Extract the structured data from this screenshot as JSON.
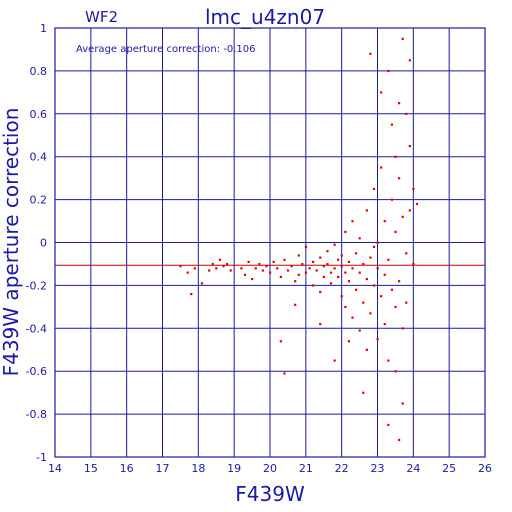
{
  "chart_data": {
    "type": "scatter",
    "title": "lmc_u4zn07",
    "chip_label": "WF2",
    "annotation": "Average aperture correction: -0.106",
    "xlabel": "F439W",
    "ylabel": "F439W aperture correction",
    "xlim": [
      14,
      26
    ],
    "ylim": [
      -1,
      1
    ],
    "x_ticks": [
      14,
      15,
      16,
      17,
      18,
      19,
      20,
      21,
      22,
      23,
      24,
      25,
      26
    ],
    "y_ticks": [
      -1,
      -0.8,
      -0.6,
      -0.4,
      -0.2,
      0,
      0.2,
      0.4,
      0.6,
      0.8,
      1
    ],
    "y_tick_labels": [
      "-1",
      "-0.8",
      "-0.6",
      "-0.4",
      "-0.2",
      "0",
      "0.2",
      "0.4",
      "0.6",
      "0.8",
      "1"
    ],
    "grid": true,
    "reference_line": {
      "y": -0.106
    },
    "colors": {
      "axes": "#1a1aa6",
      "points": "#e00000",
      "reference_line": "#cc0000"
    },
    "points": [
      [
        17.5,
        -0.11
      ],
      [
        17.7,
        -0.14
      ],
      [
        17.8,
        -0.24
      ],
      [
        17.9,
        -0.12
      ],
      [
        18.1,
        -0.19
      ],
      [
        18.3,
        -0.13
      ],
      [
        18.4,
        -0.1
      ],
      [
        18.5,
        -0.12
      ],
      [
        18.6,
        -0.08
      ],
      [
        18.7,
        -0.11
      ],
      [
        18.8,
        -0.1
      ],
      [
        18.9,
        -0.13
      ],
      [
        19.2,
        -0.12
      ],
      [
        19.3,
        -0.15
      ],
      [
        19.4,
        -0.09
      ],
      [
        19.5,
        -0.17
      ],
      [
        19.6,
        -0.12
      ],
      [
        19.7,
        -0.1
      ],
      [
        19.8,
        -0.13
      ],
      [
        19.9,
        -0.11
      ],
      [
        20.0,
        -0.14
      ],
      [
        20.1,
        -0.09
      ],
      [
        20.2,
        -0.12
      ],
      [
        20.3,
        -0.16
      ],
      [
        20.3,
        -0.46
      ],
      [
        20.4,
        -0.61
      ],
      [
        20.4,
        -0.08
      ],
      [
        20.5,
        -0.13
      ],
      [
        20.6,
        -0.11
      ],
      [
        20.7,
        -0.18
      ],
      [
        20.8,
        -0.06
      ],
      [
        20.8,
        -0.15
      ],
      [
        20.9,
        -0.1
      ],
      [
        21.0,
        -0.14
      ],
      [
        21.0,
        -0.02
      ],
      [
        21.1,
        -0.12
      ],
      [
        21.2,
        -0.09
      ],
      [
        21.2,
        -0.2
      ],
      [
        21.3,
        -0.13
      ],
      [
        21.4,
        -0.07
      ],
      [
        21.4,
        -0.23
      ],
      [
        21.5,
        -0.11
      ],
      [
        21.5,
        -0.16
      ],
      [
        21.6,
        -0.04
      ],
      [
        21.6,
        -0.1
      ],
      [
        21.7,
        -0.14
      ],
      [
        21.7,
        -0.19
      ],
      [
        21.8,
        -0.12
      ],
      [
        21.8,
        -0.01
      ],
      [
        21.9,
        -0.08
      ],
      [
        21.9,
        -0.16
      ],
      [
        22.0,
        -0.25
      ],
      [
        22.0,
        -0.11
      ],
      [
        22.0,
        -0.06
      ],
      [
        22.1,
        -0.14
      ],
      [
        22.1,
        -0.3
      ],
      [
        22.1,
        0.05
      ],
      [
        22.2,
        -0.09
      ],
      [
        22.2,
        -0.18
      ],
      [
        22.3,
        -0.35
      ],
      [
        22.3,
        -0.12
      ],
      [
        22.3,
        0.1
      ],
      [
        22.4,
        -0.05
      ],
      [
        22.4,
        -0.22
      ],
      [
        22.5,
        -0.41
      ],
      [
        22.5,
        -0.14
      ],
      [
        22.5,
        0.02
      ],
      [
        22.6,
        -0.1
      ],
      [
        22.6,
        -0.28
      ],
      [
        22.7,
        -0.5
      ],
      [
        22.7,
        0.15
      ],
      [
        22.7,
        -0.17
      ],
      [
        22.8,
        0.88
      ],
      [
        22.8,
        -0.07
      ],
      [
        22.8,
        -0.33
      ],
      [
        22.9,
        -0.2
      ],
      [
        22.9,
        -0.02
      ],
      [
        22.9,
        0.25
      ],
      [
        23.0,
        -0.45
      ],
      [
        23.0,
        -0.12
      ],
      [
        23.0,
        0.0
      ],
      [
        23.1,
        -0.25
      ],
      [
        23.1,
        0.7
      ],
      [
        23.1,
        0.35
      ],
      [
        23.2,
        -0.15
      ],
      [
        23.2,
        -0.38
      ],
      [
        23.2,
        0.1
      ],
      [
        23.3,
        0.8
      ],
      [
        23.3,
        -0.08
      ],
      [
        23.3,
        -0.55
      ],
      [
        23.4,
        0.55
      ],
      [
        23.4,
        -0.22
      ],
      [
        23.4,
        0.2
      ],
      [
        23.5,
        -0.3
      ],
      [
        23.5,
        0.4
      ],
      [
        23.5,
        -0.6
      ],
      [
        23.5,
        0.05
      ],
      [
        23.6,
        0.65
      ],
      [
        23.6,
        -0.18
      ],
      [
        23.6,
        0.3
      ],
      [
        23.7,
        -0.4
      ],
      [
        23.7,
        0.95
      ],
      [
        23.7,
        -0.75
      ],
      [
        23.7,
        0.12
      ],
      [
        23.8,
        0.6
      ],
      [
        23.8,
        -0.05
      ],
      [
        23.8,
        -0.28
      ],
      [
        23.9,
        0.85
      ],
      [
        23.9,
        0.45
      ],
      [
        23.9,
        0.15
      ],
      [
        24.0,
        0.25
      ],
      [
        24.0,
        -0.1
      ],
      [
        24.1,
        0.18
      ],
      [
        21.4,
        -0.38
      ],
      [
        20.7,
        -0.29
      ],
      [
        22.6,
        -0.7
      ],
      [
        23.3,
        -0.85
      ],
      [
        23.6,
        -0.92
      ],
      [
        21.8,
        -0.55
      ],
      [
        22.2,
        -0.46
      ]
    ]
  }
}
